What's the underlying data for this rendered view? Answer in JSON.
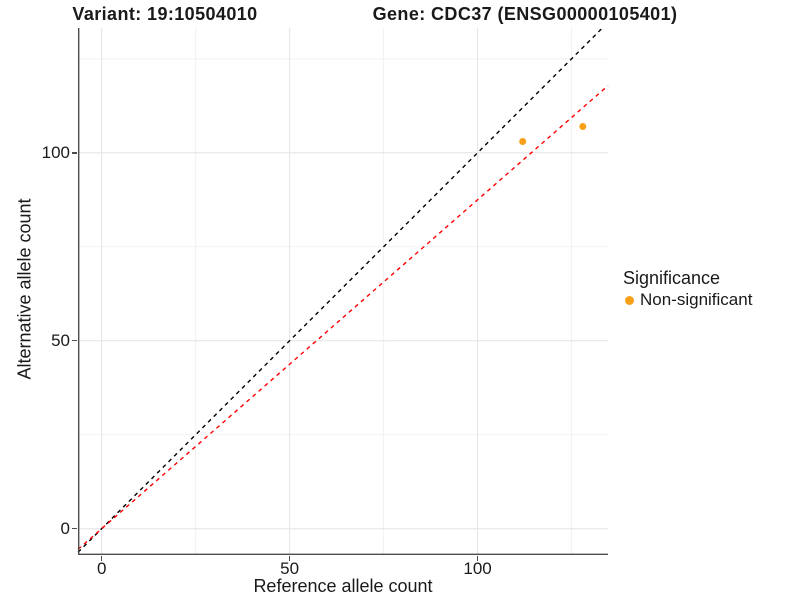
{
  "chart_data": {
    "type": "scatter",
    "title_left": "Variant: 19:10504010",
    "title_right": "Gene: CDC37 (ENSG00000105401)",
    "xlabel": "Reference allele count",
    "ylabel": "Alternative allele count",
    "xlim": [
      -6.3,
      134.7
    ],
    "ylim": [
      -7,
      133.2
    ],
    "x_ticks": [
      0,
      50,
      100
    ],
    "y_ticks": [
      0,
      50,
      100
    ],
    "x_minor_ticks": [
      25,
      75,
      125
    ],
    "y_minor_ticks": [
      25,
      75,
      125
    ],
    "grid": true,
    "legend_position": "right-middle",
    "series": [
      {
        "name": "Non-significant",
        "color": "#F9A01B",
        "points": [
          {
            "x": 112,
            "y": 103
          },
          {
            "x": 128,
            "y": 107
          }
        ]
      }
    ],
    "lines": [
      {
        "name": "identity",
        "slope": 1,
        "intercept": 0,
        "color": "#000000",
        "dashed": true
      },
      {
        "name": "allelic-ratio",
        "slope": 0.875,
        "intercept": 0,
        "color": "#FF0000",
        "dashed": true
      }
    ]
  },
  "legend": {
    "title": "Significance",
    "items": [
      {
        "label": "Non-significant",
        "color": "#F9A01B"
      }
    ]
  },
  "style": {
    "grid_major": "#E4E4E4",
    "grid_minor": "#F1F1F1",
    "axis_line": "#4D4D4D",
    "text_color": "#1A1A1A",
    "background": "#FFFFFF"
  }
}
